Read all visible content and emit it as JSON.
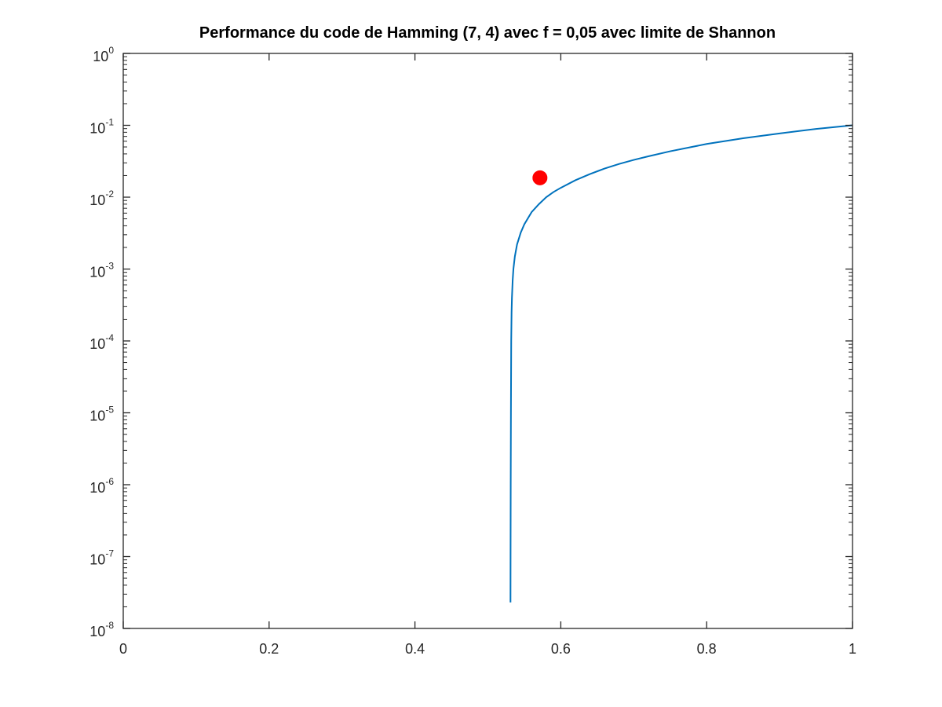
{
  "chart_data": {
    "type": "line",
    "title": "Performance du code de Hamming (7, 4) avec f = 0,05 avec limite de Shannon",
    "xlabel": "",
    "ylabel": "",
    "xlim": [
      0,
      1
    ],
    "ylim": [
      1e-08,
      1
    ],
    "y_scale": "log",
    "grid": false,
    "x_ticks": [
      {
        "value": 0,
        "label": "0"
      },
      {
        "value": 0.2,
        "label": "0.2"
      },
      {
        "value": 0.4,
        "label": "0.4"
      },
      {
        "value": 0.6,
        "label": "0.6"
      },
      {
        "value": 0.8,
        "label": "0.8"
      },
      {
        "value": 1,
        "label": "1"
      }
    ],
    "y_ticks": [
      {
        "value": 1e-08,
        "base": "10",
        "exp": "-8"
      },
      {
        "value": 1e-07,
        "base": "10",
        "exp": "-7"
      },
      {
        "value": 1e-06,
        "base": "10",
        "exp": "-6"
      },
      {
        "value": 1e-05,
        "base": "10",
        "exp": "-5"
      },
      {
        "value": 0.0001,
        "base": "10",
        "exp": "-4"
      },
      {
        "value": 0.001,
        "base": "10",
        "exp": "-3"
      },
      {
        "value": 0.01,
        "base": "10",
        "exp": "-2"
      },
      {
        "value": 0.1,
        "base": "10",
        "exp": "-1"
      },
      {
        "value": 1,
        "base": "10",
        "exp": "0"
      }
    ],
    "series": [
      {
        "kind": "line",
        "color": "#0072bd",
        "x": [
          0.531,
          0.5311,
          0.5313,
          0.5316,
          0.532,
          0.5325,
          0.533,
          0.534,
          0.535,
          0.537,
          0.54,
          0.545,
          0.55,
          0.56,
          0.57,
          0.58,
          0.59,
          0.6,
          0.62,
          0.64,
          0.66,
          0.68,
          0.7,
          0.72,
          0.75,
          0.8,
          0.85,
          0.9,
          0.95,
          1.0
        ],
        "y": [
          2.3e-08,
          1e-07,
          1e-06,
          1e-05,
          0.0001,
          0.00025,
          0.0004,
          0.0007,
          0.001,
          0.0015,
          0.0022,
          0.0032,
          0.0042,
          0.0062,
          0.008,
          0.01,
          0.0118,
          0.0135,
          0.0172,
          0.021,
          0.025,
          0.029,
          0.033,
          0.037,
          0.0435,
          0.055,
          0.066,
          0.077,
          0.089,
          0.1
        ]
      },
      {
        "kind": "marker",
        "color": "#ff0000",
        "x": [
          0.5714
        ],
        "y": [
          0.0186
        ]
      }
    ]
  }
}
